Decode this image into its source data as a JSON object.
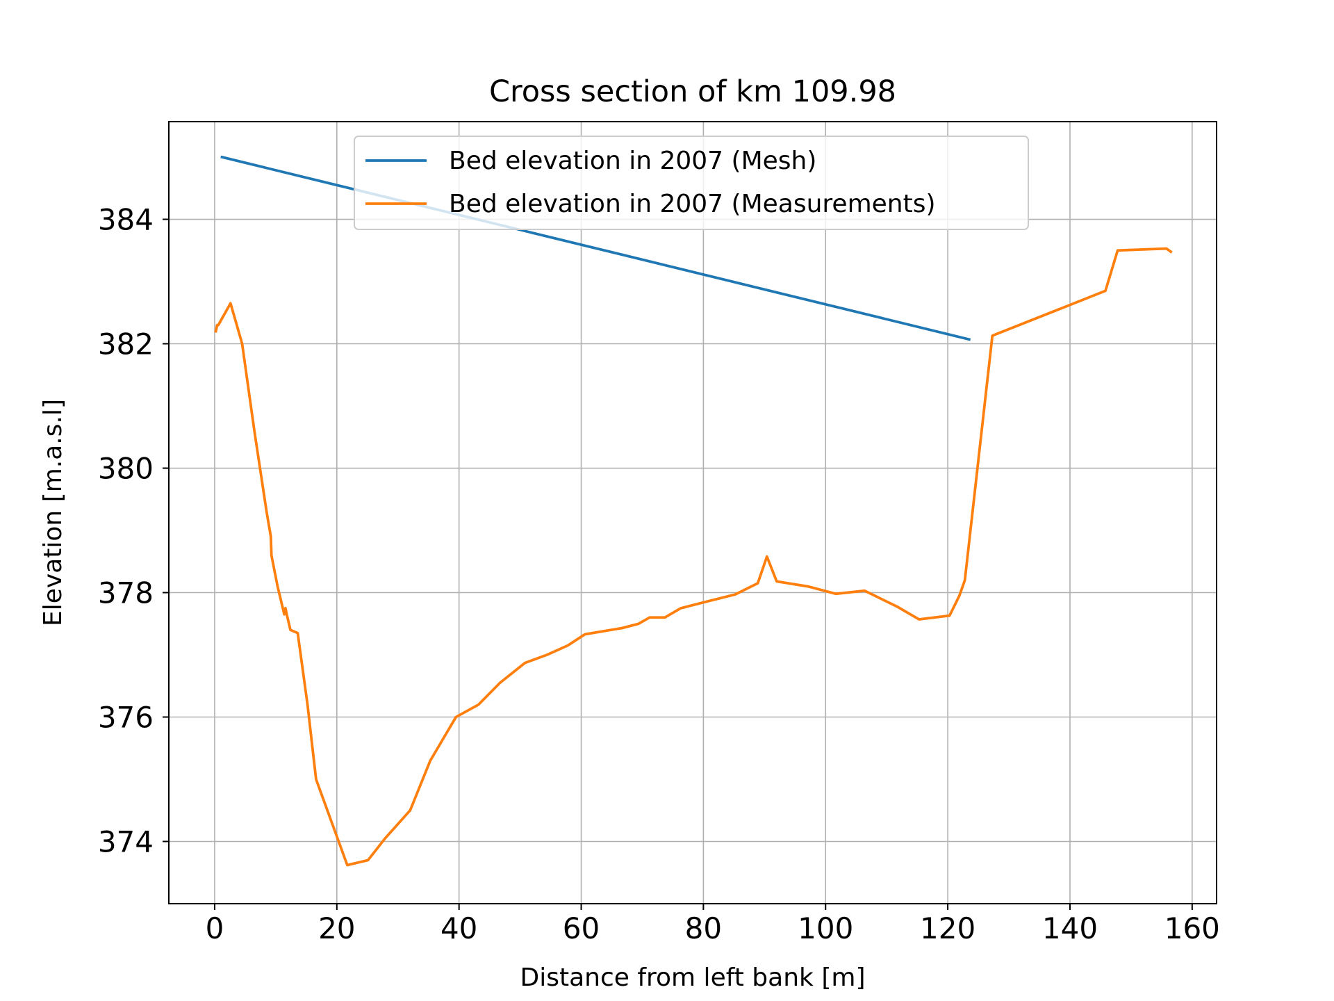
{
  "chart_data": {
    "type": "line",
    "title": "Cross section of km 109.98",
    "xlabel": "Distance from left bank [m]",
    "ylabel": "Elevation [m.a.s.l]",
    "xlim": [
      -7.5,
      164.0
    ],
    "ylim": [
      373.0,
      385.57
    ],
    "xticks": [
      0,
      20,
      40,
      60,
      80,
      100,
      120,
      140,
      160
    ],
    "yticks": [
      374,
      376,
      378,
      380,
      382,
      384
    ],
    "grid": true,
    "legend_position": "upper center",
    "series": [
      {
        "name": "Bed elevation in 2007 (Mesh)",
        "color": "#1f77b4",
        "x": [
          1.2,
          123.5
        ],
        "y": [
          385.0,
          382.07
        ]
      },
      {
        "name": "Bed elevation in 2007 (Measurements)",
        "color": "#ff7f0e",
        "x": [
          0.2,
          0.4,
          0.6,
          2.6,
          4.5,
          6.5,
          8.5,
          9.2,
          9.3,
          10.3,
          11.4,
          11.6,
          11.8,
          12.4,
          13.6,
          15.2,
          16.6,
          21.7,
          25.1,
          27.9,
          32.0,
          35.3,
          39.5,
          43.2,
          46.7,
          50.8,
          54.4,
          57.8,
          60.6,
          66.7,
          69.4,
          71.2,
          73.7,
          76.3,
          78.3,
          85.2,
          88.9,
          90.4,
          92.0,
          97.1,
          101.7,
          106.4,
          111.8,
          115.3,
          120.3,
          121.9,
          122.8,
          127.3,
          145.8,
          147.8,
          155.8,
          156.5
        ],
        "y": [
          382.2,
          382.3,
          382.3,
          382.65,
          382.0,
          380.6,
          379.3,
          378.9,
          378.6,
          378.1,
          377.65,
          377.75,
          377.65,
          377.4,
          377.35,
          376.2,
          375.0,
          373.62,
          373.7,
          374.05,
          374.5,
          375.3,
          376.0,
          376.2,
          376.55,
          376.87,
          377.0,
          377.15,
          377.33,
          377.43,
          377.5,
          377.6,
          377.6,
          377.75,
          377.8,
          377.97,
          378.15,
          378.58,
          378.18,
          378.1,
          377.98,
          378.03,
          377.77,
          377.57,
          377.63,
          377.95,
          378.2,
          382.13,
          382.85,
          383.5,
          383.53,
          383.48
        ]
      }
    ]
  }
}
